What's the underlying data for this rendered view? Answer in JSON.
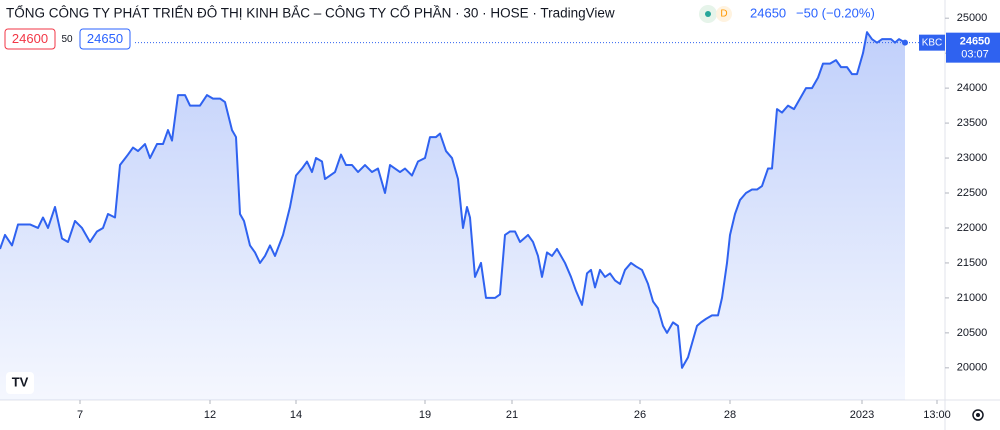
{
  "chart_data": {
    "type": "area",
    "title": "TỔNG CÔNG TY PHÁT TRIỂN ĐÔ THỊ KINH BẮC – CÔNG TY CỔ PHẦN · 30 · HOSE · TradingView",
    "status": "D",
    "last_price": 24650,
    "change_label": "−50 (−0.20%)",
    "bid": 24600,
    "spread": 50,
    "ask": 24650,
    "symbol": "KBC",
    "countdown": "03:07",
    "color": "#2f62f0",
    "grid": false,
    "x": [
      0,
      5,
      12,
      18,
      30,
      38,
      43,
      48,
      55,
      62,
      68,
      75,
      82,
      90,
      97,
      103,
      108,
      115,
      120,
      128,
      133,
      138,
      145,
      150,
      157,
      163,
      168,
      172,
      178,
      185,
      190,
      200,
      207,
      213,
      220,
      225,
      232,
      236,
      240,
      244,
      250,
      255,
      260,
      265,
      270,
      275,
      283,
      290,
      296,
      302,
      307,
      312,
      316,
      322,
      325,
      330,
      335,
      341,
      346,
      352,
      358,
      365,
      372,
      378,
      385,
      390,
      395,
      400,
      405,
      412,
      418,
      425,
      430,
      436,
      440,
      446,
      452,
      458,
      463,
      467,
      470,
      475,
      481,
      486,
      495,
      500,
      505,
      510,
      515,
      520,
      528,
      533,
      538,
      542,
      547,
      552,
      557,
      565,
      571,
      576,
      582,
      587,
      591,
      595,
      600,
      605,
      610,
      615,
      620,
      625,
      631,
      636,
      642,
      648,
      653,
      658,
      663,
      667,
      673,
      678,
      682,
      688,
      692,
      697,
      701,
      706,
      712,
      718,
      722,
      727,
      730,
      735,
      740,
      746,
      752,
      757,
      762,
      768,
      772,
      777,
      782,
      788,
      794,
      800,
      806,
      812,
      818,
      823,
      830,
      836,
      841,
      847,
      852,
      857,
      863,
      867,
      872,
      877,
      882,
      886,
      891,
      895,
      899,
      905
    ],
    "values": [
      21700,
      21900,
      21750,
      22050,
      22050,
      22000,
      22150,
      22000,
      22300,
      21850,
      21800,
      22100,
      22000,
      21800,
      21950,
      22000,
      22200,
      22150,
      22900,
      23050,
      23150,
      23100,
      23200,
      23000,
      23200,
      23200,
      23400,
      23250,
      23900,
      23900,
      23750,
      23750,
      23900,
      23850,
      23850,
      23800,
      23400,
      23300,
      22200,
      22100,
      21750,
      21650,
      21500,
      21600,
      21750,
      21600,
      21900,
      22300,
      22750,
      22850,
      22950,
      22800,
      23000,
      22950,
      22700,
      22750,
      22800,
      23050,
      22900,
      22900,
      22800,
      22900,
      22800,
      22850,
      22500,
      22900,
      22850,
      22800,
      22850,
      22750,
      22950,
      23000,
      23300,
      23300,
      23350,
      23100,
      23000,
      22700,
      22000,
      22300,
      22150,
      21300,
      21500,
      21000,
      21000,
      21050,
      21900,
      21950,
      21950,
      21800,
      21900,
      21800,
      21600,
      21300,
      21650,
      21600,
      21700,
      21500,
      21300,
      21100,
      20900,
      21350,
      21400,
      21150,
      21400,
      21300,
      21350,
      21250,
      21200,
      21400,
      21500,
      21450,
      21400,
      21200,
      20950,
      20850,
      20600,
      20500,
      20650,
      20600,
      20000,
      20150,
      20350,
      20600,
      20650,
      20700,
      20750,
      20750,
      21000,
      21500,
      21900,
      22200,
      22400,
      22500,
      22550,
      22550,
      22600,
      22850,
      22850,
      23700,
      23650,
      23750,
      23700,
      23850,
      24000,
      24000,
      24150,
      24350,
      24350,
      24400,
      24300,
      24300,
      24200,
      24200,
      24500,
      24800,
      24700,
      24650,
      24700,
      24700,
      24700,
      24650,
      24700,
      24650
    ],
    "xlim": [
      0,
      945
    ],
    "ylim": [
      19540,
      25260
    ],
    "xticks": [
      {
        "value": 80,
        "label": "7"
      },
      {
        "value": 210,
        "label": "12"
      },
      {
        "value": 296,
        "label": "14"
      },
      {
        "value": 425,
        "label": "19"
      },
      {
        "value": 512,
        "label": "21"
      },
      {
        "value": 640,
        "label": "26"
      },
      {
        "value": 730,
        "label": "28"
      },
      {
        "value": 862,
        "label": "2023"
      },
      {
        "value": 937,
        "label": "13:00"
      }
    ],
    "yticks": [
      20000,
      20500,
      21000,
      21500,
      22000,
      22500,
      23000,
      23500,
      24000,
      24500,
      25000
    ]
  }
}
